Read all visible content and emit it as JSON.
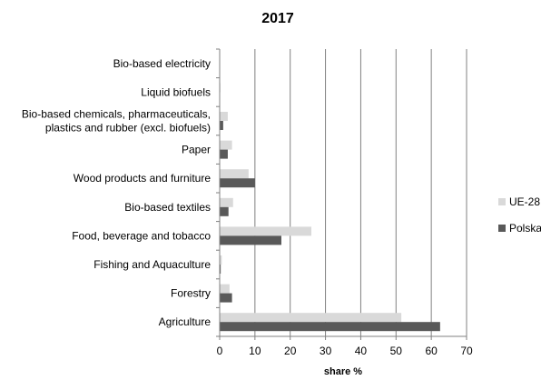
{
  "chart_data": {
    "type": "bar",
    "orientation": "horizontal",
    "title": "2017",
    "xlabel": "share %",
    "ylabel": "",
    "xlim": [
      0,
      70
    ],
    "xticks": [
      0,
      10,
      20,
      30,
      40,
      50,
      60,
      70
    ],
    "grid": true,
    "legend_position": "right",
    "categories": [
      "Agriculture",
      "Forestry",
      "Fishing and Aquaculture",
      "Food, beverage and tobacco",
      "Bio-based textiles",
      "Wood products and furniture",
      "Paper",
      "Bio-based chemicals, pharmaceuticals, plastics and rubber (excl. biofuels)",
      "Liquid biofuels",
      "Bio-based electricity"
    ],
    "category_lines": [
      [
        "Agriculture"
      ],
      [
        "Forestry"
      ],
      [
        "Fishing and Aquaculture"
      ],
      [
        "Food, beverage and tobacco"
      ],
      [
        "Bio-based textiles"
      ],
      [
        "Wood products and furniture"
      ],
      [
        "Paper"
      ],
      [
        "Bio-based chemicals, pharmaceuticals,",
        "plastics and rubber (excl. biofuels)"
      ],
      [
        "Liquid biofuels"
      ],
      [
        "Bio-based electricity"
      ]
    ],
    "series": [
      {
        "name": "UE-28",
        "color": "#d9d9d9",
        "values": [
          51.5,
          2.8,
          0.6,
          26.0,
          3.8,
          8.2,
          3.5,
          2.3,
          0.2,
          0.1
        ]
      },
      {
        "name": "Polska",
        "color": "#595959",
        "values": [
          62.5,
          3.5,
          0.3,
          17.5,
          2.5,
          10.0,
          2.3,
          1.0,
          0.1,
          0.1
        ]
      }
    ]
  }
}
